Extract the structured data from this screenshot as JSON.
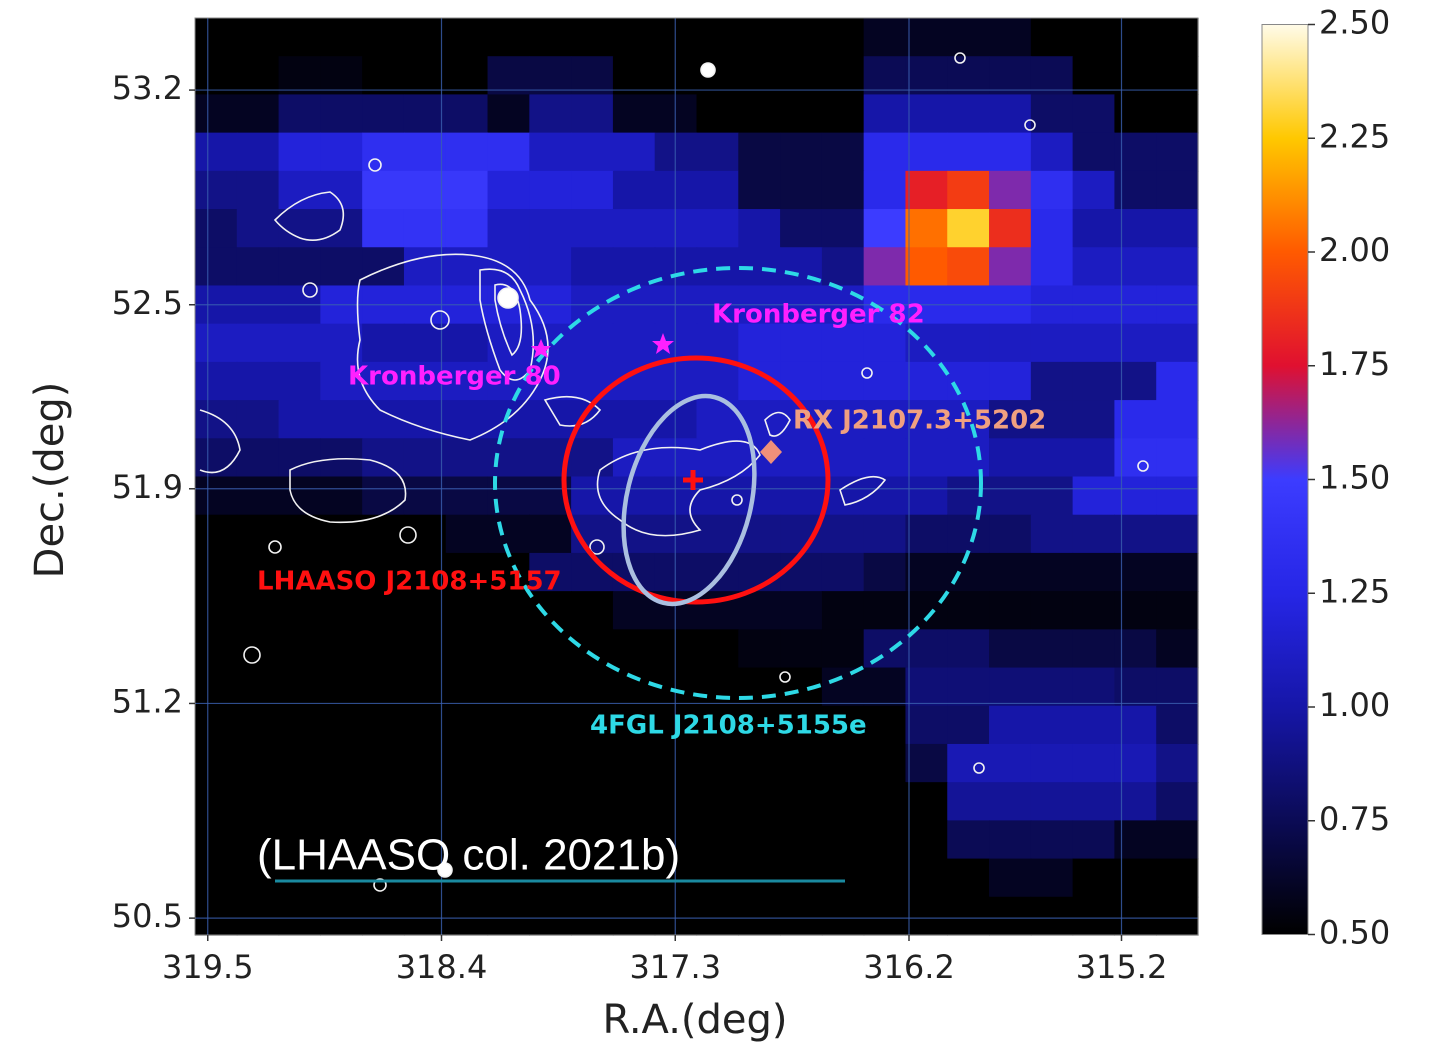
{
  "chart_data": {
    "type": "heatmap",
    "xlabel": "R.A.(deg)",
    "ylabel": "Dec.(deg)",
    "xlim": [
      319.56,
      314.84
    ],
    "ylim": [
      50.445,
      53.435
    ],
    "xticks": [
      319.5,
      318.4,
      317.3,
      316.2,
      315.2
    ],
    "yticks": [
      53.2,
      52.5,
      51.9,
      51.2,
      50.5
    ],
    "grid": true,
    "zlim": [
      0.5,
      2.5
    ],
    "zticks": [
      {
        "value": 0.5,
        "label": "0.50"
      },
      0.75,
      {
        "value": 1.0,
        "label": "1.00"
      },
      1.25,
      {
        "value": 1.5,
        "label": "1.50"
      },
      1.75,
      {
        "value": 2.0,
        "label": "2.00"
      },
      2.25,
      {
        "value": 2.5,
        "label": "2.50"
      }
    ],
    "colormap": [
      "#000000",
      "#0b0b55",
      "#1616a8",
      "#2626e6",
      "#3c3cff",
      "#e01030",
      "#ff5a00",
      "#ffc800",
      "#fffbe8"
    ],
    "z": [
      [
        0.5,
        0.5,
        0.5,
        0.5,
        0.5,
        0.5,
        0.5,
        0.5,
        0.5,
        0.5,
        0.5,
        0.5,
        0.5,
        0.5,
        0.5,
        0.5,
        0.6,
        0.6,
        0.6,
        0.6,
        0.5,
        0.5,
        0.5,
        0.5
      ],
      [
        0.5,
        0.5,
        0.55,
        0.55,
        0.5,
        0.5,
        0.5,
        0.7,
        0.7,
        0.7,
        0.5,
        0.5,
        0.5,
        0.5,
        0.5,
        0.5,
        0.75,
        0.75,
        0.75,
        0.75,
        0.75,
        0.5,
        0.5,
        0.5
      ],
      [
        0.6,
        0.6,
        0.8,
        0.8,
        0.8,
        0.8,
        0.8,
        0.6,
        0.9,
        0.9,
        0.6,
        0.6,
        0.5,
        0.5,
        0.5,
        0.5,
        1.0,
        1.0,
        1.0,
        1.0,
        0.8,
        0.8,
        0.5,
        0.5
      ],
      [
        1.0,
        1.0,
        1.2,
        1.2,
        1.35,
        1.35,
        1.35,
        1.35,
        1.1,
        1.1,
        1.1,
        0.9,
        0.9,
        0.7,
        0.7,
        0.7,
        1.3,
        1.3,
        1.3,
        1.3,
        1.1,
        0.8,
        0.8,
        0.8
      ],
      [
        0.9,
        0.9,
        1.1,
        1.1,
        1.45,
        1.45,
        1.45,
        1.2,
        1.2,
        1.2,
        1.0,
        1.0,
        1.0,
        0.7,
        0.7,
        0.7,
        1.3,
        1.8,
        1.9,
        1.6,
        1.35,
        1.1,
        0.8,
        0.8
      ],
      [
        0.8,
        0.9,
        0.9,
        0.9,
        1.4,
        1.4,
        1.4,
        1.1,
        1.1,
        1.1,
        1.1,
        1.1,
        1.1,
        1.0,
        0.8,
        0.8,
        1.5,
        2.05,
        2.3,
        1.85,
        1.3,
        1.0,
        1.0,
        1.0
      ],
      [
        0.8,
        0.8,
        0.8,
        0.8,
        0.8,
        1.1,
        1.1,
        1.1,
        1.1,
        1.0,
        1.0,
        1.0,
        1.0,
        1.0,
        1.0,
        0.9,
        1.6,
        2.0,
        1.95,
        1.6,
        1.3,
        1.1,
        1.1,
        1.1
      ],
      [
        1.0,
        1.0,
        1.0,
        1.2,
        1.2,
        1.2,
        1.2,
        1.2,
        1.2,
        1.1,
        1.1,
        1.1,
        1.1,
        1.1,
        1.1,
        1.1,
        1.3,
        1.3,
        1.3,
        1.3,
        1.2,
        1.2,
        1.2,
        1.2
      ],
      [
        1.1,
        1.1,
        1.1,
        1.1,
        1.0,
        1.0,
        1.0,
        1.1,
        1.1,
        1.1,
        1.1,
        1.1,
        1.1,
        1.2,
        1.2,
        1.2,
        1.2,
        1.1,
        1.1,
        1.1,
        1.1,
        1.1,
        1.1,
        1.1
      ],
      [
        1.0,
        1.0,
        1.0,
        1.1,
        1.1,
        1.1,
        1.1,
        1.1,
        1.1,
        1.1,
        1.1,
        1.1,
        1.1,
        1.2,
        1.2,
        1.2,
        1.2,
        1.2,
        1.2,
        1.2,
        0.9,
        0.9,
        0.9,
        1.3
      ],
      [
        0.9,
        0.9,
        1.0,
        1.0,
        1.0,
        1.0,
        1.0,
        1.0,
        1.0,
        1.0,
        1.0,
        1.0,
        1.1,
        1.1,
        1.1,
        1.1,
        1.1,
        1.1,
        1.1,
        0.9,
        0.9,
        0.9,
        1.3,
        1.3
      ],
      [
        0.8,
        0.8,
        0.8,
        0.8,
        0.9,
        0.9,
        0.9,
        0.9,
        0.9,
        0.9,
        1.1,
        1.1,
        1.1,
        1.1,
        1.1,
        1.1,
        1.1,
        1.1,
        1.1,
        1.0,
        1.0,
        1.0,
        1.35,
        1.35
      ],
      [
        0.6,
        0.6,
        0.6,
        0.6,
        0.7,
        0.7,
        0.7,
        0.7,
        0.7,
        1.0,
        1.0,
        1.0,
        1.0,
        1.0,
        1.0,
        1.0,
        1.0,
        1.0,
        0.9,
        0.9,
        0.9,
        1.2,
        1.2,
        1.2
      ],
      [
        0.5,
        0.5,
        0.5,
        0.5,
        0.5,
        0.5,
        0.6,
        0.6,
        0.6,
        0.9,
        0.9,
        0.9,
        0.9,
        0.9,
        0.9,
        0.9,
        0.9,
        0.8,
        0.8,
        0.8,
        0.9,
        0.9,
        0.9,
        0.9
      ],
      [
        0.5,
        0.5,
        0.5,
        0.5,
        0.5,
        0.5,
        0.5,
        0.5,
        0.8,
        0.8,
        0.8,
        0.8,
        0.8,
        0.8,
        0.8,
        0.8,
        0.7,
        0.6,
        0.6,
        0.6,
        0.6,
        0.6,
        0.6,
        0.6
      ],
      [
        0.5,
        0.5,
        0.5,
        0.5,
        0.5,
        0.5,
        0.5,
        0.5,
        0.5,
        0.5,
        0.6,
        0.6,
        0.6,
        0.6,
        0.6,
        0.55,
        0.55,
        0.55,
        0.55,
        0.55,
        0.55,
        0.55,
        0.55,
        0.55
      ],
      [
        0.5,
        0.5,
        0.5,
        0.5,
        0.5,
        0.5,
        0.5,
        0.5,
        0.5,
        0.5,
        0.5,
        0.5,
        0.5,
        0.55,
        0.55,
        0.55,
        0.8,
        0.8,
        0.8,
        0.7,
        0.7,
        0.7,
        0.7,
        0.6
      ],
      [
        0.5,
        0.5,
        0.5,
        0.5,
        0.5,
        0.5,
        0.5,
        0.5,
        0.5,
        0.5,
        0.5,
        0.5,
        0.5,
        0.5,
        0.5,
        0.6,
        0.6,
        0.85,
        0.85,
        0.85,
        0.85,
        0.85,
        0.8,
        0.8
      ],
      [
        0.5,
        0.5,
        0.5,
        0.5,
        0.5,
        0.5,
        0.5,
        0.5,
        0.5,
        0.5,
        0.5,
        0.5,
        0.5,
        0.5,
        0.5,
        0.5,
        0.5,
        0.8,
        0.8,
        1.0,
        1.0,
        1.0,
        1.0,
        0.8
      ],
      [
        0.5,
        0.5,
        0.5,
        0.5,
        0.5,
        0.5,
        0.5,
        0.5,
        0.5,
        0.5,
        0.5,
        0.5,
        0.5,
        0.5,
        0.5,
        0.5,
        0.5,
        0.7,
        1.05,
        1.05,
        1.05,
        1.05,
        1.05,
        0.9
      ],
      [
        0.5,
        0.5,
        0.5,
        0.5,
        0.5,
        0.5,
        0.5,
        0.5,
        0.5,
        0.5,
        0.5,
        0.5,
        0.5,
        0.5,
        0.5,
        0.5,
        0.5,
        0.5,
        0.95,
        0.95,
        0.95,
        0.95,
        0.95,
        0.8
      ],
      [
        0.5,
        0.5,
        0.5,
        0.5,
        0.5,
        0.5,
        0.5,
        0.5,
        0.5,
        0.5,
        0.5,
        0.5,
        0.5,
        0.5,
        0.5,
        0.5,
        0.5,
        0.5,
        0.75,
        0.75,
        0.75,
        0.75,
        0.6,
        0.6
      ],
      [
        0.5,
        0.5,
        0.5,
        0.5,
        0.5,
        0.5,
        0.5,
        0.5,
        0.5,
        0.5,
        0.5,
        0.5,
        0.5,
        0.5,
        0.5,
        0.5,
        0.5,
        0.5,
        0.5,
        0.6,
        0.6,
        0.5,
        0.5,
        0.5
      ],
      [
        0.5,
        0.5,
        0.5,
        0.5,
        0.5,
        0.5,
        0.5,
        0.5,
        0.5,
        0.5,
        0.5,
        0.5,
        0.5,
        0.5,
        0.5,
        0.5,
        0.5,
        0.5,
        0.5,
        0.5,
        0.5,
        0.5,
        0.5,
        0.5
      ]
    ],
    "annotations": [
      "Kronberger 82",
      "Kronberger 80",
      "RX J2107.3+5202",
      "LHAASO J2108+5157",
      "4FGL J2108+5155e"
    ],
    "caption": "(LHAASO col. 2021b)"
  }
}
